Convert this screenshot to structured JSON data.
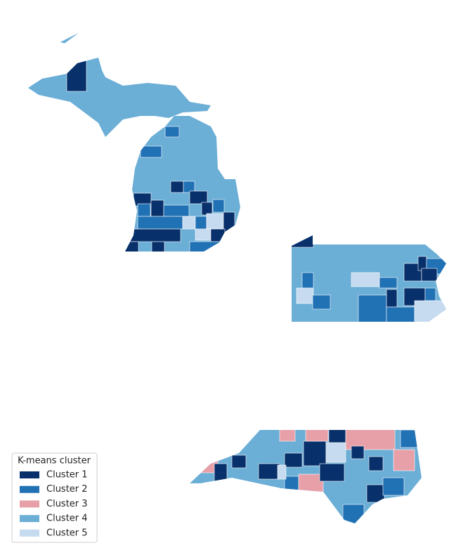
{
  "legend": {
    "title": "K-means cluster",
    "items": [
      {
        "label": "Cluster 1",
        "color": "#08306b"
      },
      {
        "label": "Cluster 2",
        "color": "#2171b5"
      },
      {
        "label": "Cluster 3",
        "color": "#e8a0a8"
      },
      {
        "label": "Cluster 4",
        "color": "#6baed6"
      },
      {
        "label": "Cluster 5",
        "color": "#c6dbef"
      }
    ]
  }
}
